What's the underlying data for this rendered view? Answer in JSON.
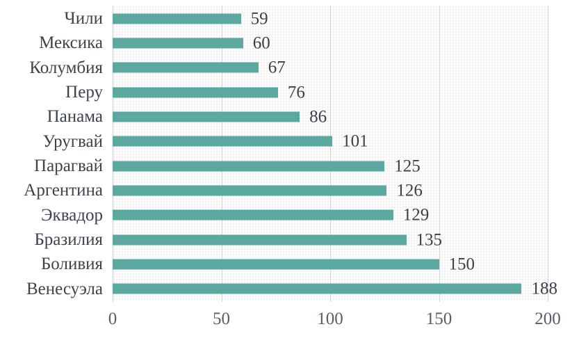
{
  "chart_data": {
    "type": "bar",
    "orientation": "horizontal",
    "title": "",
    "xlabel": "",
    "ylabel": "",
    "categories": [
      "Чили",
      "Мексика",
      "Колумбия",
      "Перу",
      "Панама",
      "Уругвай",
      "Парагвай",
      "Аргентина",
      "Эквадор",
      "Бразилия",
      "Боливия",
      "Венесуэла"
    ],
    "values": [
      59,
      60,
      67,
      76,
      86,
      101,
      125,
      126,
      129,
      135,
      150,
      188
    ],
    "value_labels": [
      "59",
      "60",
      "67",
      "76",
      "86",
      "101",
      "125",
      "126",
      "129",
      "135",
      "150",
      "188"
    ],
    "xlim": [
      0,
      200
    ],
    "x_ticks": [
      0,
      50,
      100,
      150,
      200
    ],
    "x_tick_labels": [
      "0",
      "50",
      "100",
      "150",
      "200"
    ],
    "grid": "vertical",
    "legend": "none",
    "colors": {
      "bar": "#5ba8a1",
      "gridline": "#cfd5db",
      "category_text": "#3e434b",
      "value_text": "#3a3f48",
      "tick_text": "#585e66",
      "background": "#ffffff"
    }
  }
}
